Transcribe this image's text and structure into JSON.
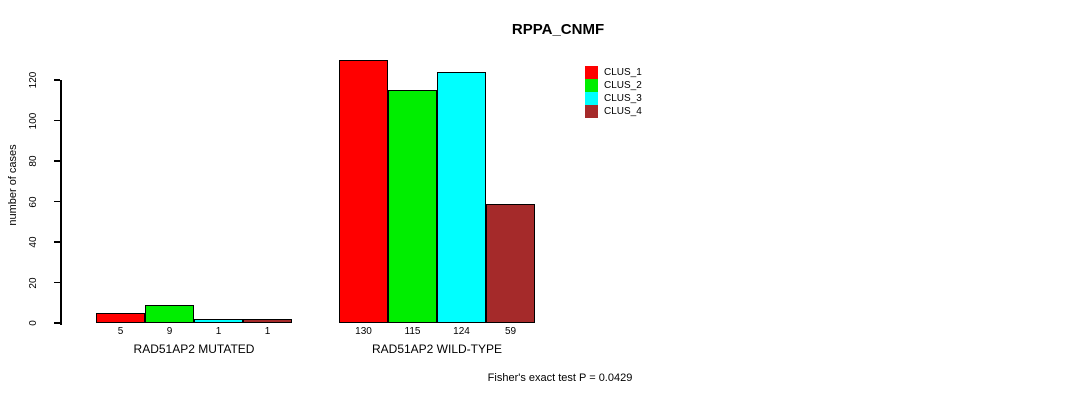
{
  "chart_data": {
    "type": "bar",
    "title": "RPPA_CNMF",
    "xlabel": "",
    "ylabel": "number of cases",
    "ylim": [
      0,
      130
    ],
    "yticks": [
      0,
      20,
      40,
      60,
      80,
      100,
      120
    ],
    "grid": false,
    "legend_position": "top-right",
    "bar_value_labels_shown": true,
    "categories": [
      "RAD51AP2 MUTATED",
      "RAD51AP2 WILD-TYPE"
    ],
    "series": [
      {
        "name": "CLUS_1",
        "color": "#ff0000",
        "values": [
          5,
          130
        ]
      },
      {
        "name": "CLUS_2",
        "color": "#00ee00",
        "values": [
          9,
          115
        ]
      },
      {
        "name": "CLUS_3",
        "color": "#00ffff",
        "values": [
          1,
          124
        ]
      },
      {
        "name": "CLUS_4",
        "color": "#a52a2a",
        "values": [
          1,
          59
        ]
      }
    ],
    "annotation": "Fisher's exact test P = 0.0429"
  }
}
